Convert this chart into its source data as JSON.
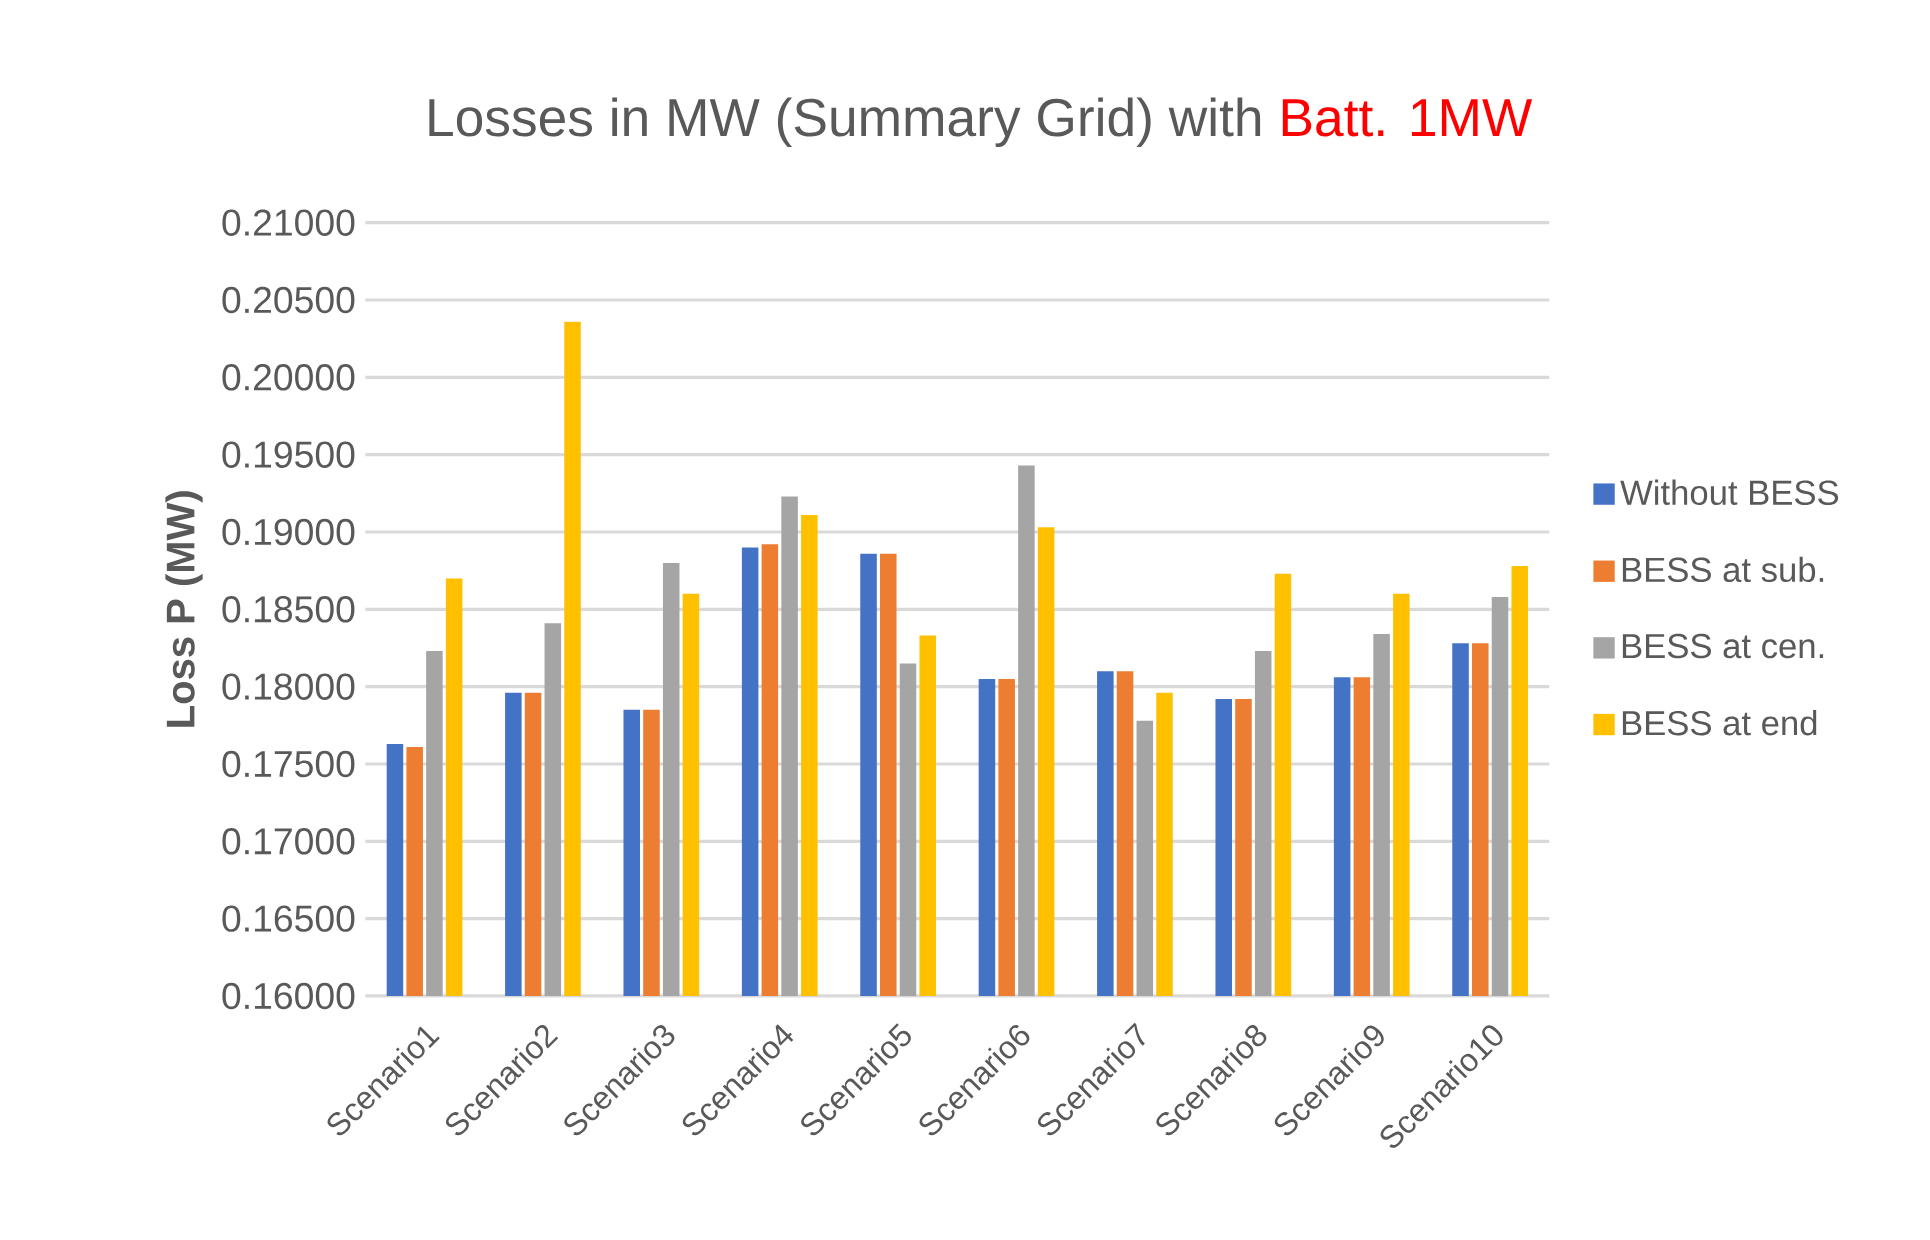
{
  "chart_data": {
    "type": "bar",
    "title": "Losses in MW (Summary Grid) with",
    "subtitle": "Batt. 1MW",
    "ylabel": "Loss P (MW)",
    "categories": [
      "Scenario1",
      "Scenario2",
      "Scenario3",
      "Scenario4",
      "Scenario5",
      "Scenario6",
      "Scenario7",
      "Scenario8",
      "Scenario9",
      "Scenario10"
    ],
    "series": [
      {
        "name": "Without BESS",
        "color": "#4472c4",
        "values": [
          0.1763,
          0.1796,
          0.1785,
          0.189,
          0.1886,
          0.1805,
          0.181,
          0.1792,
          0.1806,
          0.1828
        ]
      },
      {
        "name": "BESS at sub.",
        "color": "#ed7d31",
        "values": [
          0.1761,
          0.1796,
          0.1785,
          0.1892,
          0.1886,
          0.1805,
          0.181,
          0.1792,
          0.1806,
          0.1828
        ]
      },
      {
        "name": "BESS at cen.",
        "color": "#a5a5a5",
        "values": [
          0.1823,
          0.1841,
          0.188,
          0.1923,
          0.1815,
          0.1943,
          0.1778,
          0.1823,
          0.1834,
          0.1858
        ]
      },
      {
        "name": "BESS at end",
        "color": "#ffc000",
        "values": [
          0.187,
          0.2036,
          0.186,
          0.1911,
          0.1833,
          0.1903,
          0.1796,
          0.1873,
          0.186,
          0.1878
        ]
      }
    ],
    "ylim": [
      0.16,
      0.21
    ],
    "yticks": [
      {
        "value": 0.16,
        "label": "0.16000"
      },
      {
        "value": 0.165,
        "label": "0.16500"
      },
      {
        "value": 0.17,
        "label": "0.17000"
      },
      {
        "value": 0.175,
        "label": "0.17500"
      },
      {
        "value": 0.18,
        "label": "0.18000"
      },
      {
        "value": 0.185,
        "label": "0.18500"
      },
      {
        "value": 0.19,
        "label": "0.19000"
      },
      {
        "value": 0.195,
        "label": "0.19500"
      },
      {
        "value": 0.2,
        "label": "0.20000"
      },
      {
        "value": 0.205,
        "label": "0.20500"
      },
      {
        "value": 0.21,
        "label": "0.21000"
      }
    ],
    "grid": "y",
    "legend": "right"
  }
}
